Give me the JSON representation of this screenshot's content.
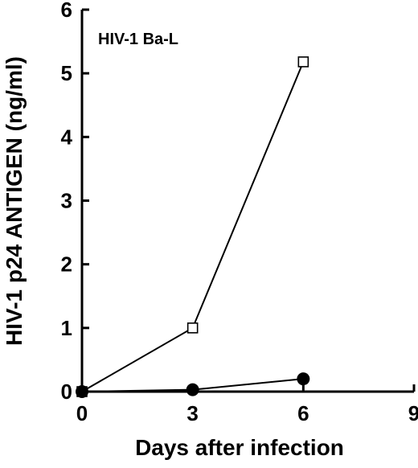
{
  "chart_data": {
    "type": "line",
    "annotation": "HIV-1 Ba-L",
    "xlabel": "Days after infection",
    "ylabel": "HIV-1 p24 ANTIGEN (ng/ml)",
    "xlim": [
      0,
      9
    ],
    "ylim": [
      0,
      6
    ],
    "x_ticks": [
      "0",
      "3",
      "6",
      "9"
    ],
    "y_ticks": [
      "0",
      "1",
      "2",
      "3",
      "4",
      "5",
      "6"
    ],
    "grid": false,
    "legend": "none",
    "series": [
      {
        "marker": "open-square",
        "x": [
          0,
          3,
          6
        ],
        "y": [
          0.0,
          1.0,
          5.18
        ]
      },
      {
        "marker": "filled-circle",
        "x": [
          0,
          3,
          6
        ],
        "y": [
          0.0,
          0.03,
          0.2
        ]
      }
    ]
  }
}
